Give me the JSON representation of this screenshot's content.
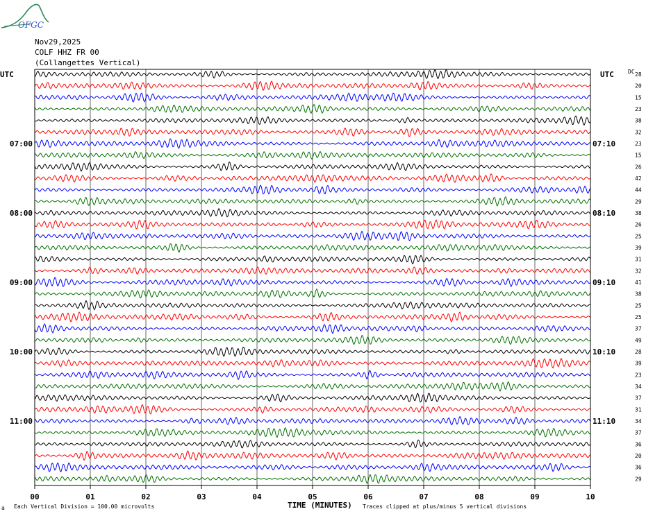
{
  "header": {
    "logo_text": "OFGC",
    "date": "Nov29,2025",
    "station": "COLF HHZ FR 00",
    "location": "(Collangettes Vertical)"
  },
  "axes": {
    "left_title": "UTC",
    "right_title": "UTC",
    "dc_title": "DC",
    "x_title": "TIME (MINUTES)"
  },
  "footer": {
    "scale_note": "Each Vertical Division =  100.00 microvolts",
    "clip_note": "Traces clipped at plus/minus 5 vertical divisions"
  },
  "colors": {
    "trace_cycle": [
      "#000000",
      "#ff0000",
      "#0000ff",
      "#007000"
    ],
    "grid": "#000000"
  },
  "chart_data": {
    "type": "line",
    "title": "Nov29,2025",
    "xlabel": "TIME (MINUTES)",
    "ylabel": "UTC",
    "x_ticks": [
      "00",
      "01",
      "02",
      "03",
      "04",
      "05",
      "06",
      "07",
      "08",
      "09",
      "10"
    ],
    "xlim": [
      0,
      10
    ],
    "rows_count": 36,
    "rows_per_hour": 6,
    "left_hour_labels": [
      {
        "row": 6,
        "label": "07:00"
      },
      {
        "row": 12,
        "label": "08:00"
      },
      {
        "row": 18,
        "label": "09:00"
      },
      {
        "row": 24,
        "label": "10:00"
      },
      {
        "row": 30,
        "label": "11:00"
      }
    ],
    "right_hour_labels": [
      {
        "row": 6,
        "label": "07:10"
      },
      {
        "row": 12,
        "label": "08:10"
      },
      {
        "row": 18,
        "label": "09:10"
      },
      {
        "row": 24,
        "label": "10:10"
      },
      {
        "row": 30,
        "label": "11:10"
      }
    ],
    "dc_offsets": [
      28,
      20,
      15,
      23,
      38,
      32,
      23,
      15,
      26,
      42,
      44,
      29,
      38,
      26,
      25,
      39,
      31,
      32,
      41,
      38,
      25,
      25,
      37,
      49,
      28,
      39,
      23,
      34,
      37,
      31,
      34,
      37,
      36,
      20,
      36,
      29
    ],
    "grid": true
  }
}
